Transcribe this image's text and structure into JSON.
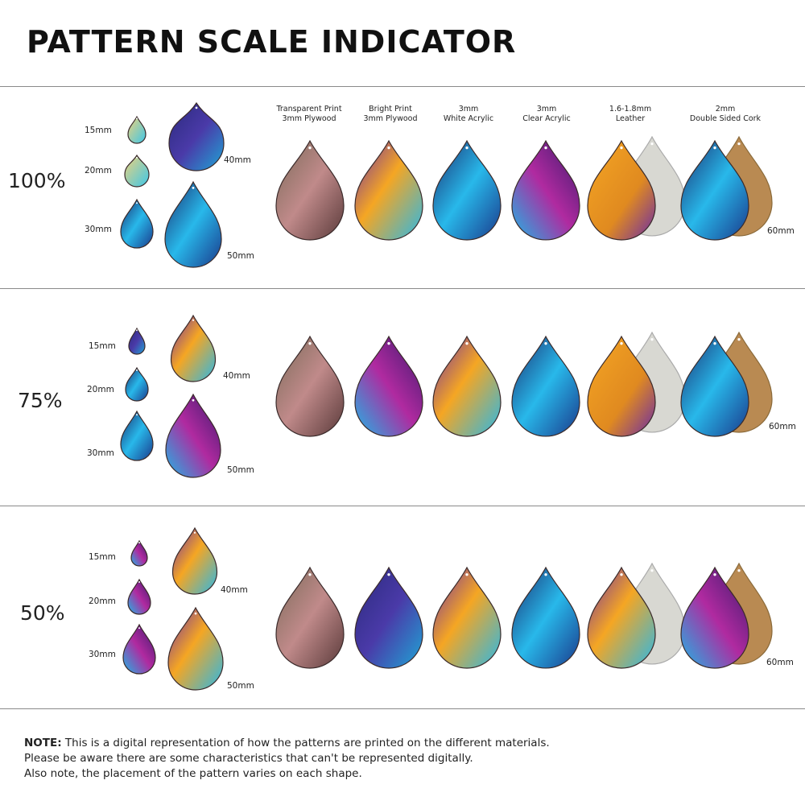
{
  "title": "PATTERN SCALE INDICATOR",
  "materials": [
    {
      "line1": "Transparent Print",
      "line2": "3mm Plywood"
    },
    {
      "line1": "Bright Print",
      "line2": "3mm Plywood"
    },
    {
      "line1": "3mm",
      "line2": "White Acrylic"
    },
    {
      "line1": "3mm",
      "line2": "Clear Acrylic"
    },
    {
      "line1": "1.6-1.8mm",
      "line2": "Leather"
    },
    {
      "line1": "2mm",
      "line2": "Double Sided Cork"
    }
  ],
  "sections": [
    {
      "scale": "100%",
      "sizes": [
        "15mm",
        "20mm",
        "30mm",
        "40mm",
        "50mm"
      ],
      "large_size": "60mm"
    },
    {
      "scale": "75%",
      "sizes": [
        "15mm",
        "20mm",
        "30mm",
        "40mm",
        "50mm"
      ],
      "large_size": "60mm"
    },
    {
      "scale": "50%",
      "sizes": [
        "15mm",
        "20mm",
        "30mm",
        "40mm",
        "50mm"
      ],
      "large_size": "60mm"
    }
  ],
  "note": {
    "label": "NOTE:",
    "line1": " This is a digital representation of how the patterns are printed on the different materials.",
    "line2": "Please be aware there are some characteristics that can't be represented digitally.",
    "line3": "Also note, the placement of the pattern varies on each shape."
  },
  "colors": {
    "blue": "#1fb6e6",
    "purple": "#5b2a9e",
    "orange": "#f5a623",
    "navy": "#1a2a6c",
    "leather_back": "#d8d8d2",
    "cork": "#b98a52"
  }
}
